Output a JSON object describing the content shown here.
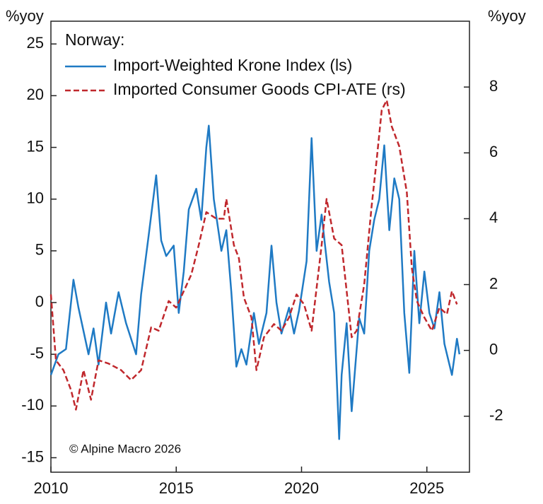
{
  "chart_data": {
    "type": "line",
    "ylabel": "%yoy",
    "y2label": "%yoy",
    "legend_title": "Norway:",
    "annotation": "© Alpine Macro 2026",
    "xlim": [
      2010,
      2026.7
    ],
    "xticks": [
      2010,
      2015,
      2020,
      2025
    ],
    "ylim": [
      -16.4,
      27.2
    ],
    "yticks": [
      -15,
      -10,
      -5,
      0,
      5,
      10,
      15,
      20,
      25
    ],
    "y2lim": [
      -3.7,
      10.0
    ],
    "y2ticks": [
      -2,
      0,
      2,
      4,
      6,
      8
    ],
    "legend": "upper left",
    "series": [
      {
        "name": "Import-Weighted Krone Index (ls)",
        "color": "#1f7ac4",
        "dash": false,
        "axis": "y",
        "x": [
          2010.0,
          2010.3,
          2010.6,
          2010.9,
          2011.1,
          2011.5,
          2011.7,
          2011.9,
          2012.2,
          2012.4,
          2012.7,
          2013.0,
          2013.4,
          2013.6,
          2013.9,
          2014.2,
          2014.4,
          2014.6,
          2014.9,
          2015.1,
          2015.3,
          2015.5,
          2015.8,
          2016.0,
          2016.2,
          2016.3,
          2016.5,
          2016.8,
          2017.0,
          2017.2,
          2017.4,
          2017.6,
          2017.8,
          2018.1,
          2018.3,
          2018.6,
          2018.8,
          2019.0,
          2019.2,
          2019.5,
          2019.7,
          2019.9,
          2020.2,
          2020.4,
          2020.6,
          2020.8,
          2021.1,
          2021.3,
          2021.5,
          2021.6,
          2021.8,
          2022.0,
          2022.3,
          2022.5,
          2022.7,
          2022.9,
          2023.1,
          2023.3,
          2023.5,
          2023.7,
          2023.9,
          2024.1,
          2024.3,
          2024.5,
          2024.7,
          2024.9,
          2025.1,
          2025.3,
          2025.5,
          2025.7,
          2026.0,
          2026.2,
          2026.3
        ],
        "values": [
          -7,
          -5,
          -4.5,
          2.2,
          -0.5,
          -5,
          -2.5,
          -6,
          0,
          -3,
          1,
          -2,
          -5,
          0.8,
          6.5,
          12.3,
          6,
          4.5,
          5.5,
          -1,
          3,
          9,
          11,
          8,
          15,
          17.1,
          10,
          5,
          7,
          1,
          -6.2,
          -4.5,
          -6,
          -1,
          -4,
          -1,
          5.5,
          0,
          -3,
          -0.5,
          -3,
          -0.8,
          4,
          15.9,
          5,
          8.5,
          2,
          -1,
          -13.2,
          -7,
          -2,
          -10.5,
          -1.5,
          -3,
          5,
          8,
          10,
          15.2,
          7,
          12,
          10,
          -1,
          -6.8,
          5,
          -2,
          3,
          -1,
          -2.5,
          1,
          -4,
          -7,
          -3.5,
          -5
        ]
      },
      {
        "name": "Imported Consumer Goods CPI-ATE (rs)",
        "color": "#c0282d",
        "dash": true,
        "axis": "y2",
        "x": [
          2010.0,
          2010.2,
          2010.5,
          2010.8,
          2011.0,
          2011.3,
          2011.6,
          2011.9,
          2012.3,
          2012.8,
          2013.2,
          2013.6,
          2014.0,
          2014.3,
          2014.7,
          2015.0,
          2015.3,
          2015.6,
          2015.9,
          2016.2,
          2016.6,
          2016.9,
          2017.0,
          2017.3,
          2017.5,
          2017.7,
          2018.0,
          2018.2,
          2018.5,
          2018.9,
          2019.2,
          2019.5,
          2019.8,
          2020.1,
          2020.4,
          2020.8,
          2021.0,
          2021.3,
          2021.6,
          2021.8,
          2022.0,
          2022.2,
          2022.5,
          2022.8,
          2023.0,
          2023.2,
          2023.4,
          2023.6,
          2023.9,
          2024.2,
          2024.4,
          2024.6,
          2024.9,
          2025.2,
          2025.5,
          2025.8,
          2026.0,
          2026.2
        ],
        "values": [
          1.7,
          -0.3,
          -0.6,
          -1.2,
          -1.8,
          -0.6,
          -1.5,
          -0.3,
          -0.4,
          -0.6,
          -0.9,
          -0.6,
          0.7,
          0.6,
          1.5,
          1.3,
          1.8,
          2.3,
          3.2,
          4.2,
          4.0,
          4.0,
          4.6,
          3.2,
          2.8,
          1.6,
          1.0,
          -0.6,
          0.4,
          0.8,
          0.6,
          1.0,
          1.7,
          1.4,
          0.6,
          3.2,
          4.6,
          3.4,
          3.2,
          1.8,
          0.4,
          0.6,
          2.0,
          4.4,
          5.8,
          7.3,
          7.6,
          6.8,
          6.2,
          4.8,
          2.5,
          1.5,
          1.0,
          0.6,
          1.3,
          1.1,
          1.8,
          1.4
        ]
      }
    ]
  }
}
